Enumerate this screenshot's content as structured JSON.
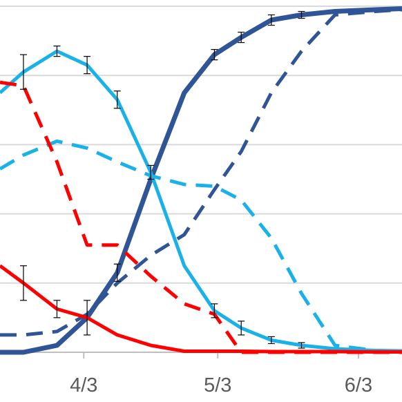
{
  "chart_data": {
    "type": "line",
    "title": "",
    "xlabel": "",
    "ylabel": "",
    "x_ticks": [
      {
        "label": "4/3",
        "value": 4.5
      },
      {
        "label": "5/3",
        "value": 8.5
      },
      {
        "label": "6/3",
        "value": 12.7
      }
    ],
    "xlim": [
      2,
      14
    ],
    "ylim": [
      0,
      100
    ],
    "grid": "horizontal",
    "y_gridlines": [
      0,
      20,
      40,
      60,
      80,
      100
    ],
    "legend": "none",
    "colors": {
      "navy": "#2f5597",
      "cyan": "#19b1e8",
      "red": "#ff0000",
      "grid": "#d9d9d9",
      "axis": "#bfbfbf",
      "errorbar": "#000000"
    },
    "series": [
      {
        "color": "#2f5597",
        "style": "solid",
        "x": [
          2,
          2.7,
          3.7,
          4.6,
          5.5,
          6.5,
          7.5,
          8.4,
          9.2,
          10.1,
          11,
          12,
          13.2,
          14
        ],
        "values": [
          0,
          0,
          2,
          10,
          23,
          50,
          75,
          86,
          91,
          96,
          97.5,
          98.5,
          99,
          99.3
        ],
        "errors": [
          0,
          0,
          0,
          0,
          2.5,
          0,
          0,
          1.5,
          1.5,
          1.5,
          1,
          0,
          0,
          0
        ]
      },
      {
        "color": "#2f5597",
        "style": "dashed",
        "x": [
          2,
          2.7,
          3.7,
          4.6,
          5.5,
          6.5,
          7.5,
          8.4,
          9.2,
          10.1,
          11,
          12,
          13.2,
          14
        ],
        "values": [
          5,
          5,
          6,
          11,
          20,
          28,
          34,
          47,
          58,
          75,
          87,
          97.5,
          98.5,
          99
        ]
      },
      {
        "color": "#19b1e8",
        "style": "solid",
        "x": [
          2,
          2.7,
          3.7,
          4.6,
          5.5,
          6.5,
          7.5,
          8.4,
          9.2,
          10.1,
          11,
          12,
          13.2,
          14
        ],
        "values": [
          75,
          81,
          87,
          83,
          73,
          52,
          25,
          12,
          7,
          3.5,
          2,
          1,
          0.5,
          0.4
        ],
        "errors": [
          0,
          5,
          1.5,
          2.5,
          2.5,
          2,
          0,
          2,
          2,
          1,
          0.8,
          0,
          0,
          0
        ]
      },
      {
        "color": "#19b1e8",
        "style": "dashed",
        "x": [
          2,
          2.7,
          3.7,
          4.6,
          5.5,
          6.5,
          7.5,
          8.4,
          9.2,
          10.1,
          11,
          12,
          13.2,
          14
        ],
        "values": [
          53,
          57,
          61,
          59,
          55,
          51,
          48.5,
          48,
          44,
          33,
          17,
          2,
          0.5,
          0.3
        ]
      },
      {
        "color": "#ff0000",
        "style": "solid",
        "x": [
          2,
          2.7,
          3.7,
          4.6,
          5.5,
          6.5,
          7.5,
          8.4,
          9.2,
          10.1,
          11,
          12,
          13.2,
          14
        ],
        "values": [
          25,
          20,
          12.5,
          10,
          5,
          2,
          0.3,
          0.3,
          0.3,
          0.2,
          0.2,
          0.2,
          0.1,
          0.1
        ],
        "errors": [
          0,
          5,
          2.5,
          5,
          0,
          0,
          0,
          0,
          0,
          0,
          0,
          0,
          0,
          0
        ]
      },
      {
        "color": "#ff0000",
        "style": "dashed",
        "x": [
          2,
          2.7,
          3.7,
          4.6,
          5.5,
          6.5,
          7.5,
          8.4,
          9.2,
          10.1,
          11,
          12,
          13.2,
          14
        ],
        "values": [
          78,
          77,
          55,
          31,
          31,
          22,
          14,
          11,
          0,
          0,
          0,
          0,
          0,
          0
        ]
      }
    ]
  }
}
